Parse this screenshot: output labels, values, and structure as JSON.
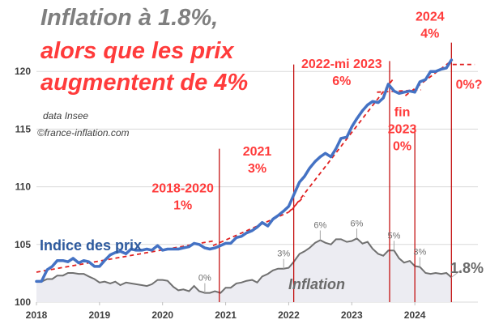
{
  "chart_data": {
    "type": "line",
    "title_line1": "Inflation à 1.8%,",
    "title_line2": "alors que les prix",
    "title_line3": "augmentent de 4%",
    "source_line1": "data Insee",
    "source_line2": "©france-inflation.com",
    "x_ticks": [
      "2018",
      "2019",
      "2020",
      "2021",
      "2022",
      "2023",
      "2024"
    ],
    "y_ticks": [
      "100",
      "105",
      "110",
      "115",
      "120"
    ],
    "xlim": [
      2018.0,
      2025.0
    ],
    "ylim": [
      100,
      125
    ],
    "grid": "horizontal",
    "colors": {
      "prix": "#4472c4",
      "inflation_line": "#707070",
      "inflation_fill": "#ececf2",
      "trend": "#e02020",
      "period_line": "#c00000",
      "title_main": "#7f7f7f",
      "title_accent": "#ff3b3b",
      "prix_label": "#2e5a9e",
      "inflation_label": "#6a6a6a"
    },
    "series": [
      {
        "name": "Indice des prix",
        "kind": "price_index",
        "points": [
          [
            2018.0,
            101.8
          ],
          [
            2018.08,
            101.8
          ],
          [
            2018.17,
            102.8
          ],
          [
            2018.25,
            103.1
          ],
          [
            2018.33,
            103.6
          ],
          [
            2018.42,
            103.6
          ],
          [
            2018.5,
            103.5
          ],
          [
            2018.58,
            103.8
          ],
          [
            2018.67,
            103.4
          ],
          [
            2018.75,
            103.6
          ],
          [
            2018.83,
            103.5
          ],
          [
            2018.92,
            103.1
          ],
          [
            2019.0,
            103.1
          ],
          [
            2019.08,
            103.6
          ],
          [
            2019.17,
            104.1
          ],
          [
            2019.25,
            104.3
          ],
          [
            2019.33,
            104.4
          ],
          [
            2019.42,
            104.2
          ],
          [
            2019.5,
            104.6
          ],
          [
            2019.58,
            104.5
          ],
          [
            2019.67,
            104.5
          ],
          [
            2019.75,
            104.6
          ],
          [
            2019.83,
            104.5
          ],
          [
            2019.92,
            104.9
          ],
          [
            2020.0,
            104.5
          ],
          [
            2020.08,
            104.6
          ],
          [
            2020.17,
            104.6
          ],
          [
            2020.25,
            104.6
          ],
          [
            2020.33,
            104.7
          ],
          [
            2020.42,
            104.8
          ],
          [
            2020.5,
            105.1
          ],
          [
            2020.58,
            105.0
          ],
          [
            2020.67,
            104.7
          ],
          [
            2020.75,
            104.6
          ],
          [
            2020.83,
            104.7
          ],
          [
            2020.92,
            104.9
          ],
          [
            2021.0,
            105.1
          ],
          [
            2021.08,
            105.1
          ],
          [
            2021.17,
            105.6
          ],
          [
            2021.25,
            105.7
          ],
          [
            2021.33,
            106.0
          ],
          [
            2021.42,
            106.2
          ],
          [
            2021.5,
            106.5
          ],
          [
            2021.58,
            106.9
          ],
          [
            2021.67,
            106.6
          ],
          [
            2021.75,
            107.2
          ],
          [
            2021.83,
            107.5
          ],
          [
            2021.92,
            107.9
          ],
          [
            2022.0,
            108.3
          ],
          [
            2022.08,
            109.3
          ],
          [
            2022.17,
            110.4
          ],
          [
            2022.25,
            110.9
          ],
          [
            2022.33,
            111.6
          ],
          [
            2022.42,
            112.2
          ],
          [
            2022.5,
            112.6
          ],
          [
            2022.58,
            112.9
          ],
          [
            2022.67,
            112.6
          ],
          [
            2022.75,
            113.3
          ],
          [
            2022.83,
            114.2
          ],
          [
            2022.92,
            114.3
          ],
          [
            2023.0,
            115.2
          ],
          [
            2023.08,
            115.9
          ],
          [
            2023.17,
            116.6
          ],
          [
            2023.25,
            117.1
          ],
          [
            2023.33,
            117.4
          ],
          [
            2023.42,
            117.3
          ],
          [
            2023.5,
            117.7
          ],
          [
            2023.58,
            118.9
          ],
          [
            2023.67,
            118.3
          ],
          [
            2023.75,
            118.1
          ],
          [
            2023.83,
            118.2
          ],
          [
            2023.92,
            118.3
          ],
          [
            2024.0,
            118.2
          ],
          [
            2024.08,
            119.1
          ],
          [
            2024.17,
            119.3
          ],
          [
            2024.25,
            120.0
          ],
          [
            2024.33,
            120.0
          ],
          [
            2024.42,
            120.2
          ],
          [
            2024.5,
            120.3
          ],
          [
            2024.58,
            121.0
          ]
        ]
      },
      {
        "name": "Inflation",
        "kind": "inflation_rate",
        "points": [
          [
            2018.0,
            1.3
          ],
          [
            2018.08,
            1.3
          ],
          [
            2018.17,
            1.6
          ],
          [
            2018.25,
            1.6
          ],
          [
            2018.33,
            2.0
          ],
          [
            2018.42,
            2.0
          ],
          [
            2018.5,
            2.3
          ],
          [
            2018.58,
            2.3
          ],
          [
            2018.67,
            2.2
          ],
          [
            2018.75,
            2.2
          ],
          [
            2018.83,
            1.9
          ],
          [
            2018.92,
            1.6
          ],
          [
            2019.0,
            1.2
          ],
          [
            2019.08,
            1.3
          ],
          [
            2019.17,
            1.1
          ],
          [
            2019.25,
            1.3
          ],
          [
            2019.33,
            0.9
          ],
          [
            2019.42,
            1.2
          ],
          [
            2019.5,
            1.1
          ],
          [
            2019.58,
            1.0
          ],
          [
            2019.67,
            0.9
          ],
          [
            2019.75,
            0.8
          ],
          [
            2019.83,
            1.0
          ],
          [
            2019.92,
            1.5
          ],
          [
            2020.0,
            1.5
          ],
          [
            2020.08,
            1.4
          ],
          [
            2020.17,
            0.7
          ],
          [
            2020.25,
            0.3
          ],
          [
            2020.33,
            0.4
          ],
          [
            2020.42,
            0.2
          ],
          [
            2020.5,
            0.8
          ],
          [
            2020.58,
            0.2
          ],
          [
            2020.67,
            0.0
          ],
          [
            2020.75,
            0.0
          ],
          [
            2020.83,
            0.2
          ],
          [
            2020.92,
            0.0
          ],
          [
            2021.0,
            0.6
          ],
          [
            2021.08,
            0.6
          ],
          [
            2021.17,
            1.1
          ],
          [
            2021.25,
            1.2
          ],
          [
            2021.33,
            1.4
          ],
          [
            2021.42,
            1.5
          ],
          [
            2021.5,
            1.2
          ],
          [
            2021.58,
            1.9
          ],
          [
            2021.67,
            2.2
          ],
          [
            2021.75,
            2.6
          ],
          [
            2021.83,
            2.8
          ],
          [
            2021.92,
            2.8
          ],
          [
            2022.0,
            2.9
          ],
          [
            2022.08,
            3.6
          ],
          [
            2022.17,
            4.5
          ],
          [
            2022.25,
            4.8
          ],
          [
            2022.33,
            5.2
          ],
          [
            2022.42,
            5.8
          ],
          [
            2022.5,
            6.1
          ],
          [
            2022.58,
            5.8
          ],
          [
            2022.67,
            5.6
          ],
          [
            2022.75,
            6.2
          ],
          [
            2022.83,
            6.2
          ],
          [
            2022.92,
            5.9
          ],
          [
            2023.0,
            6.0
          ],
          [
            2023.08,
            6.3
          ],
          [
            2023.17,
            5.7
          ],
          [
            2023.25,
            5.9
          ],
          [
            2023.33,
            5.1
          ],
          [
            2023.42,
            4.5
          ],
          [
            2023.5,
            4.3
          ],
          [
            2023.58,
            4.9
          ],
          [
            2023.67,
            4.9
          ],
          [
            2023.75,
            4.0
          ],
          [
            2023.83,
            3.5
          ],
          [
            2023.92,
            3.7
          ],
          [
            2024.0,
            3.1
          ],
          [
            2024.08,
            3.0
          ],
          [
            2024.17,
            2.3
          ],
          [
            2024.25,
            2.2
          ],
          [
            2024.33,
            2.3
          ],
          [
            2024.42,
            2.2
          ],
          [
            2024.5,
            2.3
          ],
          [
            2024.58,
            1.8
          ]
        ]
      }
    ],
    "trend_lines": [
      [
        [
          2018.0,
          102.6
        ],
        [
          2020.8,
          105.3
        ]
      ],
      [
        [
          2020.8,
          104.9
        ],
        [
          2022.0,
          107.8
        ]
      ],
      [
        [
          2022.0,
          107.8
        ],
        [
          2022.25,
          109.2
        ]
      ],
      [
        [
          2022.05,
          108.0
        ],
        [
          2023.65,
          119.3
        ]
      ],
      [
        [
          2023.4,
          118.2
        ],
        [
          2024.1,
          118.4
        ]
      ],
      [
        [
          2023.85,
          117.9
        ],
        [
          2024.6,
          121.0
        ]
      ],
      [
        [
          2024.6,
          120.6
        ],
        [
          2024.95,
          120.6
        ]
      ]
    ],
    "period_markers": [
      {
        "x": 2020.9,
        "y_top": 113.3
      },
      {
        "x": 2022.08,
        "y_top": 120.6
      },
      {
        "x": 2023.6,
        "y_top": 120.9
      },
      {
        "x": 2024.0,
        "y_top": 115.1
      },
      {
        "x": 2024.58,
        "y_top": 122.5
      }
    ],
    "period_annotations": [
      {
        "lines": [
          "2018-2020",
          "1%"
        ],
        "x": 2020.32,
        "y": 109.5
      },
      {
        "lines": [
          "2021",
          "3%"
        ],
        "x": 2021.5,
        "y": 112.7
      },
      {
        "lines": [
          "2022-mi 2023",
          "6%"
        ],
        "x": 2022.84,
        "y": 120.3
      },
      {
        "lines": [
          "fin",
          "2023",
          "0%"
        ],
        "x": 2023.8,
        "y": 116.1
      },
      {
        "lines": [
          "2024",
          "4%"
        ],
        "x": 2024.24,
        "y": 124.4
      },
      {
        "lines": [
          "0%?"
        ],
        "x": 2024.86,
        "y": 118.5
      }
    ],
    "inflation_labels": [
      {
        "text": "0%",
        "x": 2020.67,
        "rate": 0.0
      },
      {
        "text": "3%",
        "x": 2021.92,
        "rate": 2.8
      },
      {
        "text": "6%",
        "x": 2022.5,
        "rate": 6.1
      },
      {
        "text": "6%",
        "x": 2023.08,
        "rate": 6.3
      },
      {
        "text": "5%",
        "x": 2023.67,
        "rate": 4.9
      },
      {
        "text": "3%",
        "x": 2024.08,
        "rate": 3.0
      }
    ],
    "last_inflation_label": "1.8%",
    "series_label_prix": "Indice des prix",
    "series_label_inflation": "Inflation"
  }
}
